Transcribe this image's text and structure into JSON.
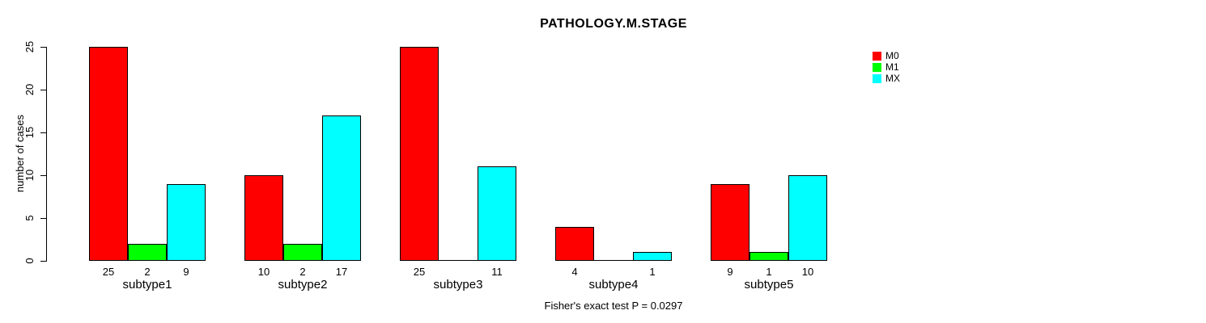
{
  "chart_data": {
    "type": "bar",
    "title": "PATHOLOGY.M.STAGE",
    "xlabel": "",
    "ylabel": "number of cases",
    "ylim": [
      0,
      25
    ],
    "yticks": [
      0,
      5,
      10,
      15,
      20,
      25
    ],
    "grid": false,
    "legend_position": "top-right",
    "categories": [
      "subtype1",
      "subtype2",
      "subtype3",
      "subtype4",
      "subtype5"
    ],
    "series": [
      {
        "name": "M0",
        "color": "#FF0000",
        "values": [
          25,
          10,
          25,
          4,
          9
        ]
      },
      {
        "name": "M1",
        "color": "#00FF00",
        "values": [
          2,
          2,
          0,
          0,
          1
        ]
      },
      {
        "name": "MX",
        "color": "#00FFFF",
        "values": [
          9,
          17,
          11,
          1,
          10
        ]
      }
    ],
    "footnote": "Fisher's exact test P = 0.0297"
  }
}
